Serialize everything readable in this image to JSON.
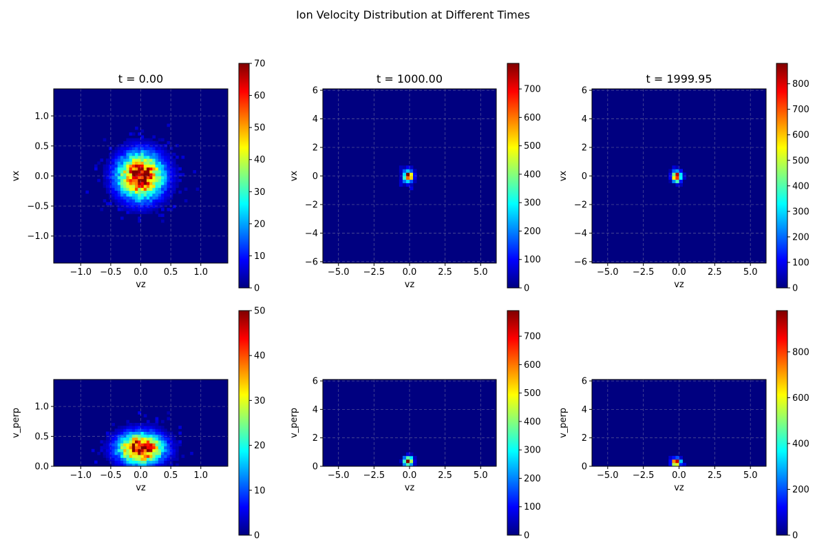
{
  "figure": {
    "title": "Ion Velocity Distribution at Different Times"
  },
  "chart_data": [
    {
      "type": "heatmap",
      "colormap": "jet",
      "grid": true,
      "title": "t = 0.00",
      "xlabel": "vz",
      "ylabel": "vx",
      "xlim": [
        -1.45,
        1.45
      ],
      "ylim": [
        -1.45,
        1.45
      ],
      "xticks": [
        -1.0,
        -0.5,
        0.0,
        0.5,
        1.0
      ],
      "yticks": [
        -1.0,
        -0.5,
        0.0,
        0.5,
        1.0
      ],
      "bins": [
        60,
        60
      ],
      "distribution": {
        "cx": 0.0,
        "cy": 0.0,
        "sx": 0.25,
        "sy": 0.25
      },
      "colorbar": {
        "min": 0,
        "max": 70,
        "ticks": [
          0,
          10,
          20,
          30,
          40,
          50,
          60,
          70
        ]
      }
    },
    {
      "type": "heatmap",
      "colormap": "jet",
      "grid": true,
      "title": "t = 1000.00",
      "xlabel": "vz",
      "ylabel": "vx",
      "xlim": [
        -6.1,
        6.1
      ],
      "ylim": [
        -6.1,
        6.1
      ],
      "xticks": [
        -5.0,
        -2.5,
        0.0,
        2.5,
        5.0
      ],
      "yticks": [
        -6,
        -4,
        -2,
        0,
        2,
        4,
        6
      ],
      "bins": [
        50,
        50
      ],
      "distribution": {
        "cx": -0.1,
        "cy": 0.0,
        "sx": 0.22,
        "sy": 0.28
      },
      "colorbar": {
        "min": 0,
        "max": 790,
        "ticks": [
          0,
          100,
          200,
          300,
          400,
          500,
          600,
          700
        ]
      }
    },
    {
      "type": "heatmap",
      "colormap": "jet",
      "grid": true,
      "title": "t = 1999.95",
      "xlabel": "vz",
      "ylabel": "vx",
      "xlim": [
        -6.1,
        6.1
      ],
      "ylim": [
        -6.1,
        6.1
      ],
      "xticks": [
        -5.0,
        -2.5,
        0.0,
        2.5,
        5.0
      ],
      "yticks": [
        -6,
        -4,
        -2,
        0,
        2,
        4,
        6
      ],
      "bins": [
        50,
        50
      ],
      "distribution": {
        "cx": -0.15,
        "cy": 0.0,
        "sx": 0.22,
        "sy": 0.26
      },
      "colorbar": {
        "min": 0,
        "max": 880,
        "ticks": [
          0,
          100,
          200,
          300,
          400,
          500,
          600,
          700,
          800
        ]
      }
    },
    {
      "type": "heatmap",
      "colormap": "jet",
      "grid": true,
      "title": "",
      "xlabel": "vz",
      "ylabel": "v_perp",
      "xlim": [
        -1.45,
        1.45
      ],
      "ylim": [
        0,
        1.45
      ],
      "xticks": [
        -1.0,
        -0.5,
        0.0,
        0.5,
        1.0
      ],
      "yticks": [
        0.0,
        0.5,
        1.0
      ],
      "bins": [
        60,
        30
      ],
      "distribution": {
        "cx": 0.0,
        "cy": 0.3,
        "sx": 0.25,
        "sy": 0.17
      },
      "colorbar": {
        "min": 0,
        "max": 50,
        "ticks": [
          0,
          10,
          20,
          30,
          40,
          50
        ]
      }
    },
    {
      "type": "heatmap",
      "colormap": "jet",
      "grid": true,
      "title": "",
      "xlabel": "vz",
      "ylabel": "v_perp",
      "xlim": [
        -6.1,
        6.1
      ],
      "ylim": [
        0,
        6.1
      ],
      "xticks": [
        -5.0,
        -2.5,
        0.0,
        2.5,
        5.0
      ],
      "yticks": [
        0,
        2,
        4,
        6
      ],
      "bins": [
        50,
        25
      ],
      "distribution": {
        "cx": -0.1,
        "cy": 0.35,
        "sx": 0.22,
        "sy": 0.22
      },
      "colorbar": {
        "min": 0,
        "max": 790,
        "ticks": [
          0,
          100,
          200,
          300,
          400,
          500,
          600,
          700
        ]
      }
    },
    {
      "type": "heatmap",
      "colormap": "jet",
      "grid": true,
      "title": "",
      "xlabel": "vz",
      "ylabel": "v_perp",
      "xlim": [
        -6.1,
        6.1
      ],
      "ylim": [
        0,
        6.1
      ],
      "xticks": [
        -5.0,
        -2.5,
        0.0,
        2.5,
        5.0
      ],
      "yticks": [
        0,
        2,
        4,
        6
      ],
      "bins": [
        50,
        25
      ],
      "distribution": {
        "cx": -0.2,
        "cy": 0.3,
        "sx": 0.22,
        "sy": 0.18
      },
      "colorbar": {
        "min": 0,
        "max": 980,
        "ticks": [
          0,
          200,
          400,
          600,
          800
        ]
      }
    }
  ]
}
